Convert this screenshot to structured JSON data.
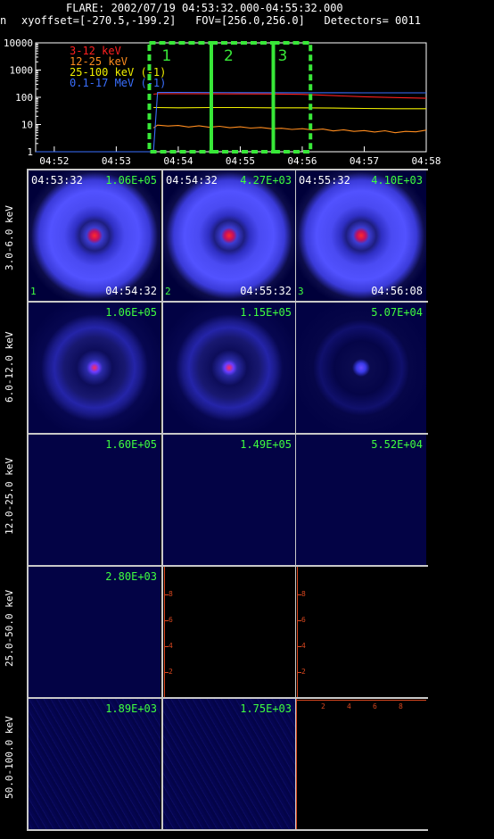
{
  "header": {
    "line1": "FLARE: 2002/07/19 04:53:32.000-04:55:32.000",
    "line2_prefix": "n",
    "line2": "xyoffset=[-270.5,-199.2]   FOV=[256.0,256.0]   Detectors= 0011"
  },
  "colors": {
    "band_3_12": "#ff2020",
    "band_12_25": "#ff8c1e",
    "band_25_100": "#f0f000",
    "band_01_17": "#3a6fff",
    "interval_box": "#38e838",
    "peak_text": "#3fff3f",
    "empty_axis": "#d7461e"
  },
  "chart_data": {
    "type": "line",
    "title": "",
    "xlabel": "",
    "ylabel": "",
    "y_scale": "log",
    "ylim": [
      1,
      10000
    ],
    "y_ticks": [
      "10000",
      "1000",
      "100",
      "10",
      "1"
    ],
    "x_ticks": [
      "04:52",
      "04:53",
      "04:54",
      "04:55",
      "04:56",
      "04:57",
      "04:58"
    ],
    "xlim": [
      "04:51:42",
      "04:58:00"
    ],
    "legend_position": "top-left",
    "series": [
      {
        "name": "3-12 keV",
        "color": "#ff2020",
        "x": [
          "04:53:36",
          "04:53:40",
          "04:54:00",
          "04:54:30",
          "04:55:00",
          "04:55:30",
          "04:56:00",
          "04:56:30",
          "04:57:00",
          "04:57:30",
          "04:58:00"
        ],
        "y": [
          130,
          135,
          135,
          134,
          133,
          132,
          128,
          115,
          105,
          98,
          92
        ]
      },
      {
        "name": "12-25 keV",
        "color": "#ff8c1e",
        "x": [
          "04:53:36",
          "04:53:40",
          "04:53:50",
          "04:54:00",
          "04:54:10",
          "04:54:20",
          "04:54:30",
          "04:54:40",
          "04:54:50",
          "04:55:00",
          "04:55:10",
          "04:55:20",
          "04:55:30",
          "04:55:40",
          "04:55:50",
          "04:56:00",
          "04:56:10",
          "04:56:20",
          "04:56:30",
          "04:56:40",
          "04:56:50",
          "04:57:00",
          "04:57:10",
          "04:57:20",
          "04:57:30",
          "04:57:40",
          "04:57:50",
          "04:58:00"
        ],
        "y": [
          7.5,
          9.5,
          8.8,
          9.2,
          8.1,
          9.0,
          7.9,
          8.6,
          7.6,
          8.2,
          7.4,
          7.8,
          7.0,
          7.3,
          6.6,
          7.0,
          6.3,
          6.8,
          5.8,
          6.4,
          5.6,
          6.0,
          5.3,
          5.9,
          5.0,
          5.6,
          5.4,
          6.2
        ]
      },
      {
        "name": "25-100 keV (-1)",
        "color": "#f0f000",
        "x": [
          "04:53:36",
          "04:53:40",
          "04:54:00",
          "04:54:30",
          "04:55:00",
          "04:55:30",
          "04:56:00",
          "04:56:30",
          "04:57:00",
          "04:57:30",
          "04:58:00"
        ],
        "y": [
          42,
          42,
          41,
          42,
          42,
          41,
          41,
          40,
          39,
          38,
          38
        ]
      },
      {
        "name": "0.1-17 MeV (-1)",
        "color": "#3a6fff",
        "x": [
          "04:51:42",
          "04:53:36",
          "04:53:40",
          "04:54:00",
          "04:55:00",
          "04:56:00",
          "04:57:00",
          "04:58:00"
        ],
        "y": [
          1,
          1,
          150,
          150,
          148,
          147,
          146,
          146
        ]
      }
    ],
    "intervals": [
      {
        "label": "1",
        "start": "04:53:32",
        "end": "04:54:32"
      },
      {
        "label": "2",
        "start": "04:54:32",
        "end": "04:55:32"
      },
      {
        "label": "3",
        "start": "04:55:32",
        "end": "04:56:08"
      }
    ]
  },
  "grid": {
    "time_start_labels": [
      "04:53:32",
      "04:54:32",
      "04:55:32"
    ],
    "time_end_labels": [
      "04:54:32",
      "04:55:32",
      "04:56:08"
    ],
    "interval_numbers": [
      "1",
      "2",
      "3"
    ],
    "rows": [
      {
        "energy": "3.0-6.0 keV",
        "peaks": [
          "1.06E+05",
          "4.27E+03",
          "4.10E+03"
        ],
        "kind": [
          "ring",
          "ring",
          "ring"
        ]
      },
      {
        "energy": "6.0-12.0 keV",
        "peaks": [
          "1.06E+05",
          "1.15E+05",
          "5.07E+04"
        ],
        "kind": [
          "ring2",
          "ring2",
          "ring3"
        ]
      },
      {
        "energy": "12.0-25.0 keV",
        "peaks": [
          "1.60E+05",
          "1.49E+05",
          "5.52E+04"
        ],
        "kind": [
          "flat",
          "flat",
          "flat"
        ]
      },
      {
        "energy": "25.0-50.0 keV",
        "peaks": [
          "2.80E+03",
          "",
          ""
        ],
        "kind": [
          "flat",
          "empty",
          "empty"
        ]
      },
      {
        "energy": "50.0-100.0 keV",
        "peaks": [
          "1.89E+03",
          "1.75E+03",
          ""
        ],
        "kind": [
          "noise",
          "noise",
          "empty"
        ]
      }
    ],
    "empty_axis_ticks": [
      "2",
      "4",
      "6",
      "8"
    ]
  }
}
